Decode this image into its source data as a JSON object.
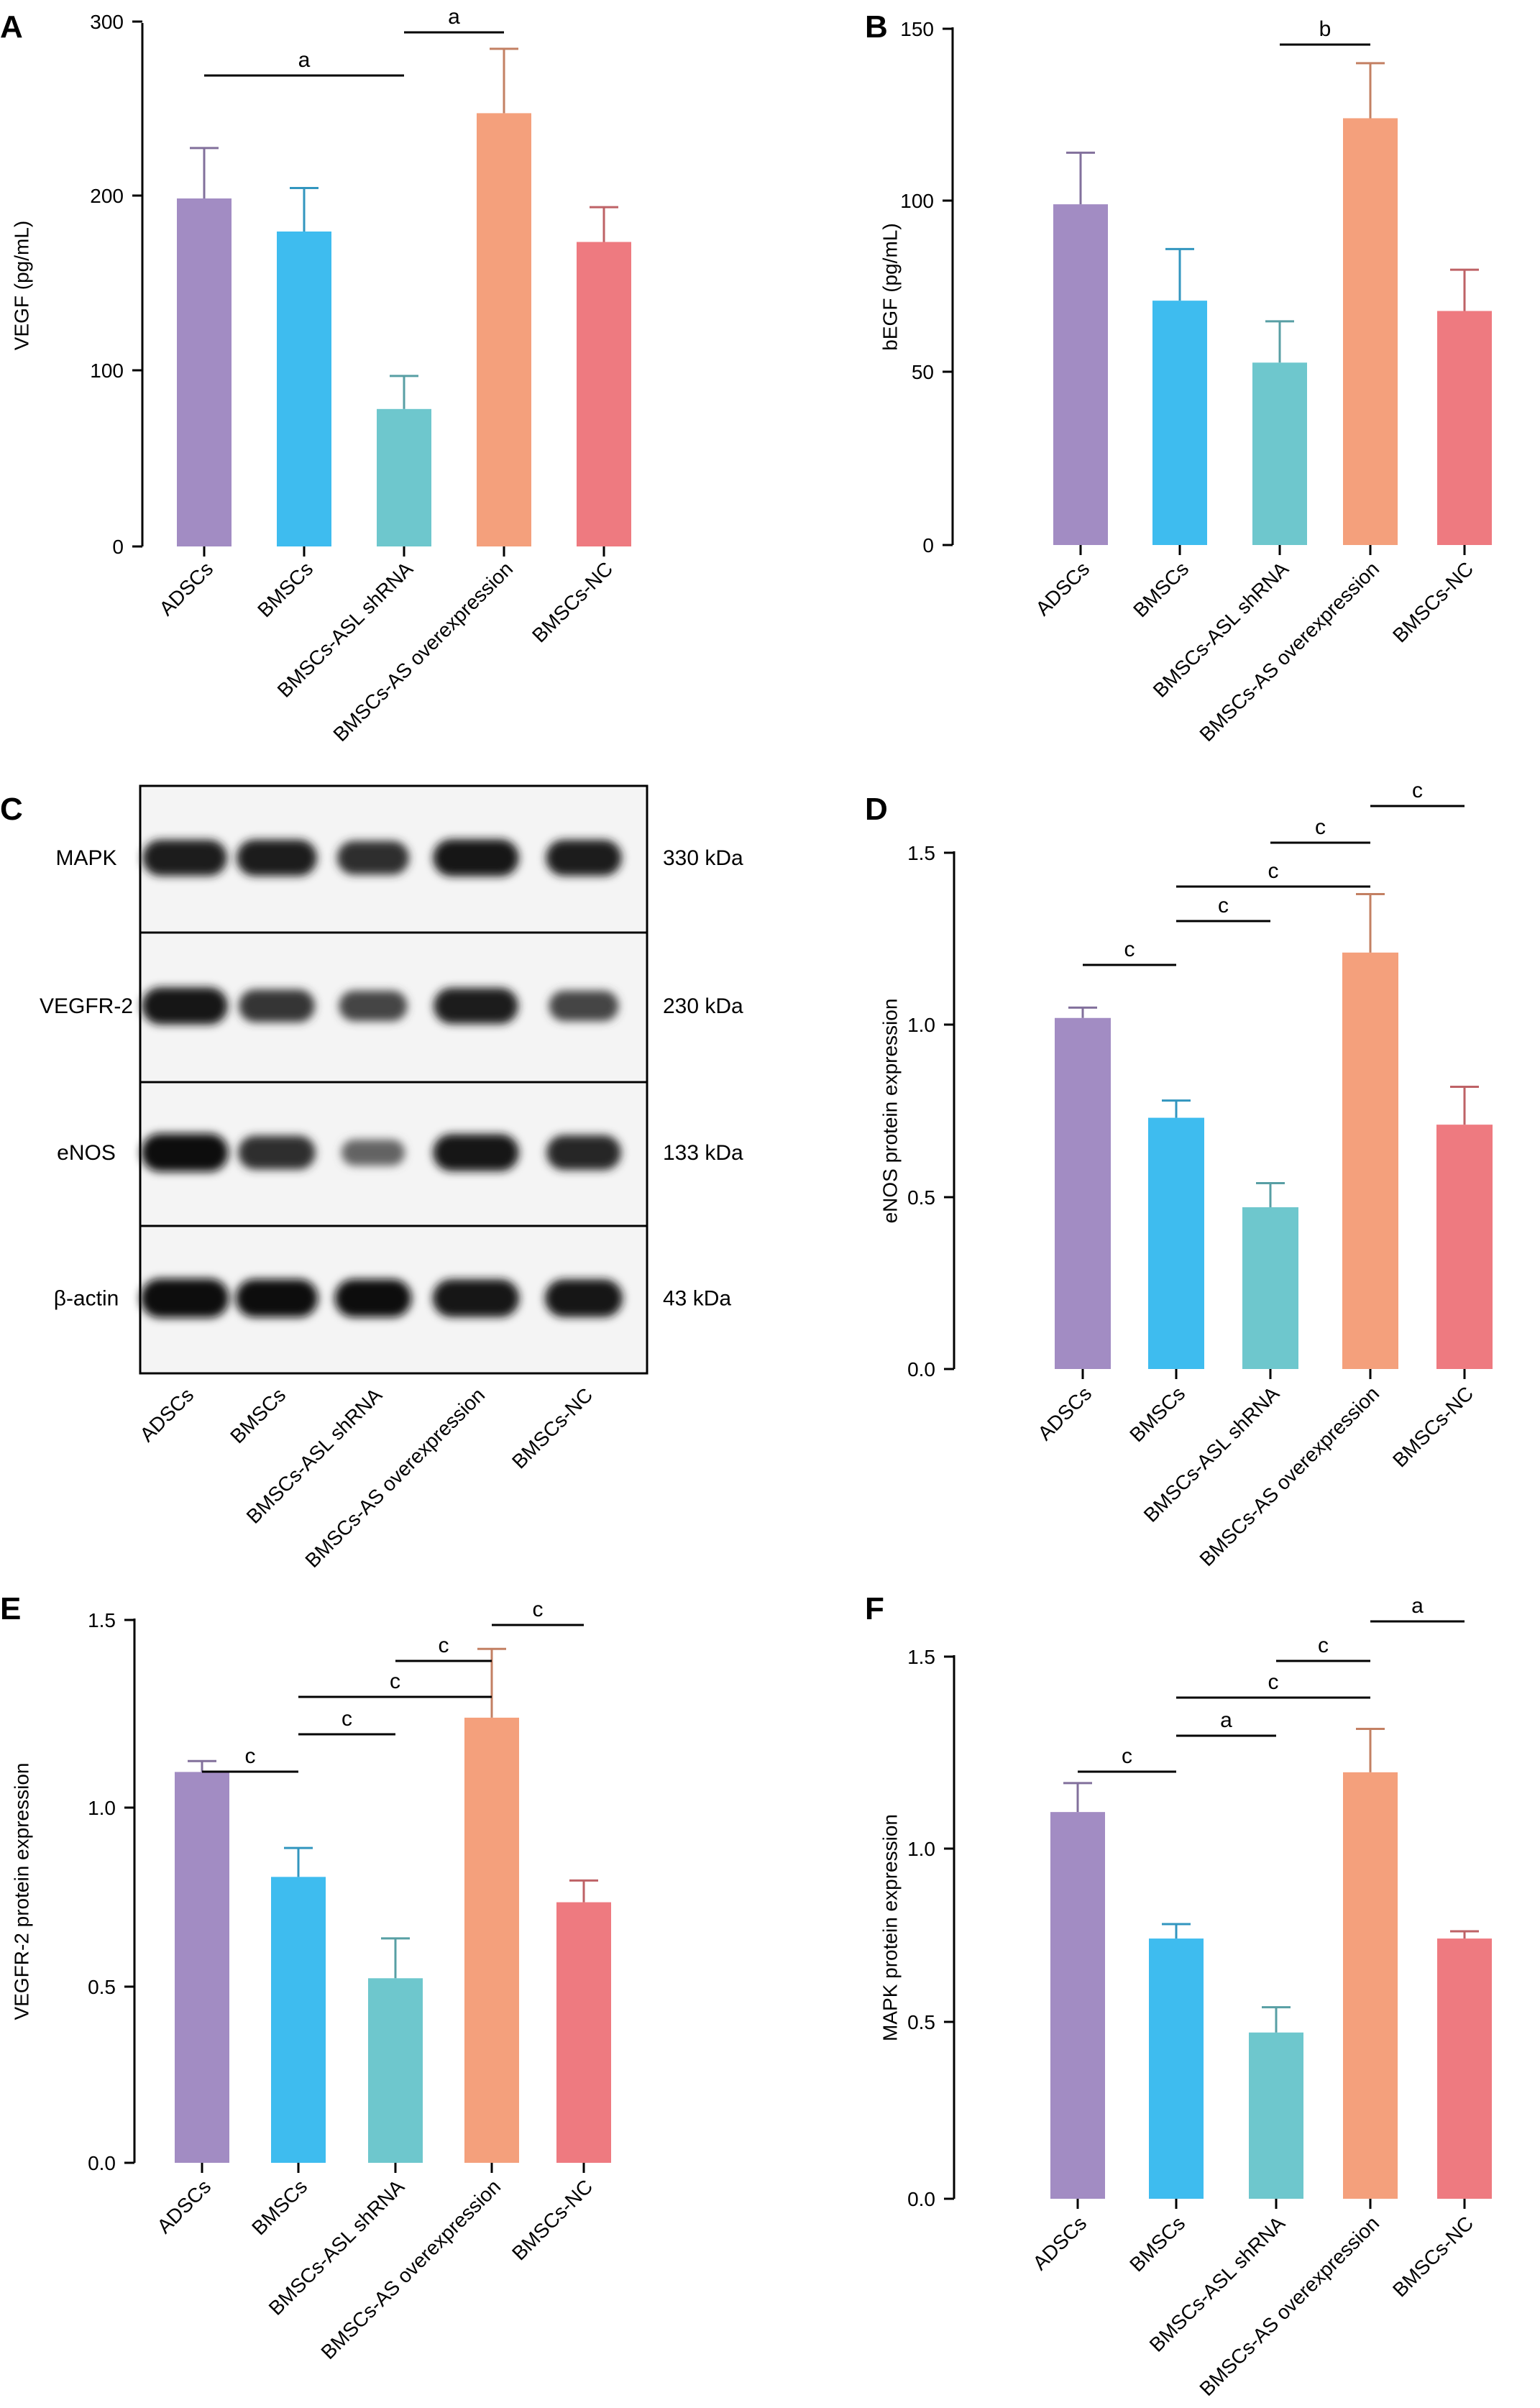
{
  "categories": [
    "ADSCs",
    "BMSCs",
    "BMSCs-ASL shRNA",
    "BMSCs-AS overexpression",
    "BMSCs-NC"
  ],
  "colors": [
    "#a28cc3",
    "#3ebcef",
    "#6ec7cd",
    "#f4a07c",
    "#ee7a80"
  ],
  "chart_data": [
    {
      "panel": "A",
      "type": "bar",
      "ylabel": "VEGF (pg/mL)",
      "ylim": [
        0,
        300
      ],
      "yticks": [
        "0",
        "100",
        "200",
        "300"
      ],
      "categories": [
        "ADSCs",
        "BMSCs",
        "BMSCs-ASL shRNA",
        "BMSCs-AS overexpression",
        "BMSCs-NC"
      ],
      "values": [
        200,
        181,
        79,
        249,
        175
      ],
      "errors": [
        29,
        25,
        19,
        37,
        20
      ],
      "significance": [
        {
          "from": 0,
          "to": 2,
          "label": "a"
        },
        {
          "from": 2,
          "to": 3,
          "label": "a"
        }
      ]
    },
    {
      "panel": "B",
      "type": "bar",
      "ylabel": "bEGF (pg/mL)",
      "ylim": [
        0,
        150
      ],
      "yticks": [
        "0",
        "50",
        "100",
        "150"
      ],
      "categories": [
        "ADSCs",
        "BMSCs",
        "BMSCs-ASL shRNA",
        "BMSCs-AS overexpression",
        "BMSCs-NC"
      ],
      "values": [
        99,
        71,
        53,
        124,
        68
      ],
      "errors": [
        15,
        15,
        12,
        16,
        12
      ],
      "significance": [
        {
          "from": 2,
          "to": 3,
          "label": "b"
        }
      ]
    },
    {
      "panel": "D",
      "type": "bar",
      "ylabel": "eNOS protein expression",
      "ylim": [
        0,
        1.5
      ],
      "yticks": [
        "0.0",
        "0.5",
        "1.0",
        "1.5"
      ],
      "categories": [
        "ADSCs",
        "BMSCs",
        "BMSCs-ASL shRNA",
        "BMSCs-AS overexpression",
        "BMSCs-NC"
      ],
      "values": [
        1.02,
        0.73,
        0.47,
        1.21,
        0.71
      ],
      "errors": [
        0.03,
        0.05,
        0.07,
        0.17,
        0.11
      ],
      "significance": [
        {
          "from": 0,
          "to": 1,
          "label": "c"
        },
        {
          "from": 1,
          "to": 2,
          "label": "c"
        },
        {
          "from": 1,
          "to": 3,
          "label": "c"
        },
        {
          "from": 2,
          "to": 3,
          "label": "c"
        },
        {
          "from": 3,
          "to": 4,
          "label": "c"
        }
      ]
    },
    {
      "panel": "E",
      "type": "bar",
      "ylabel": "VEGFR-2 protein expression",
      "ylim": [
        0,
        1.5
      ],
      "yticks": [
        "0.0",
        "0.5",
        "1.0",
        "1.5"
      ],
      "categories": [
        "ADSCs",
        "BMSCs",
        "BMSCs-ASL shRNA",
        "BMSCs-AS overexpression",
        "BMSCs-NC"
      ],
      "values": [
        1.08,
        0.79,
        0.51,
        1.23,
        0.72
      ],
      "errors": [
        0.03,
        0.08,
        0.11,
        0.19,
        0.06
      ],
      "significance": [
        {
          "from": 0,
          "to": 1,
          "label": "c"
        },
        {
          "from": 1,
          "to": 2,
          "label": "c"
        },
        {
          "from": 1,
          "to": 3,
          "label": "c"
        },
        {
          "from": 2,
          "to": 3,
          "label": "c"
        },
        {
          "from": 3,
          "to": 4,
          "label": "c"
        }
      ]
    },
    {
      "panel": "F",
      "type": "bar",
      "ylabel": "MAPK protein expression",
      "ylim": [
        0,
        1.5
      ],
      "yticks": [
        "0.0",
        "0.5",
        "1.0",
        "1.5"
      ],
      "categories": [
        "ADSCs",
        "BMSCs",
        "BMSCs-ASL shRNA",
        "BMSCs-AS overexpression",
        "BMSCs-NC"
      ],
      "values": [
        1.07,
        0.72,
        0.46,
        1.18,
        0.72
      ],
      "errors": [
        0.08,
        0.04,
        0.07,
        0.12,
        0.02
      ],
      "significance": [
        {
          "from": 0,
          "to": 1,
          "label": "c"
        },
        {
          "from": 1,
          "to": 2,
          "label": "a"
        },
        {
          "from": 1,
          "to": 3,
          "label": "c"
        },
        {
          "from": 2,
          "to": 3,
          "label": "c"
        },
        {
          "from": 3,
          "to": 4,
          "label": "a"
        }
      ]
    }
  ],
  "blot": {
    "panel": "C",
    "categories": [
      "ADSCs",
      "BMSCs",
      "BMSCs-ASL shRNA",
      "BMSCs-AS overexpression",
      "BMSCs-NC"
    ],
    "rows": [
      {
        "label": "MAPK",
        "size": "330 kDa",
        "intensity": [
          0.8,
          0.82,
          0.7,
          0.85,
          0.8
        ]
      },
      {
        "label": "VEGFR-2",
        "size": "230 kDa",
        "intensity": [
          0.85,
          0.65,
          0.55,
          0.8,
          0.55
        ]
      },
      {
        "label": "eNOS",
        "size": "133 kDa",
        "intensity": [
          0.9,
          0.7,
          0.35,
          0.85,
          0.75
        ]
      },
      {
        "label": "β-actin",
        "size": "43 kDa",
        "intensity": [
          0.95,
          0.9,
          0.9,
          0.88,
          0.88
        ]
      }
    ]
  }
}
